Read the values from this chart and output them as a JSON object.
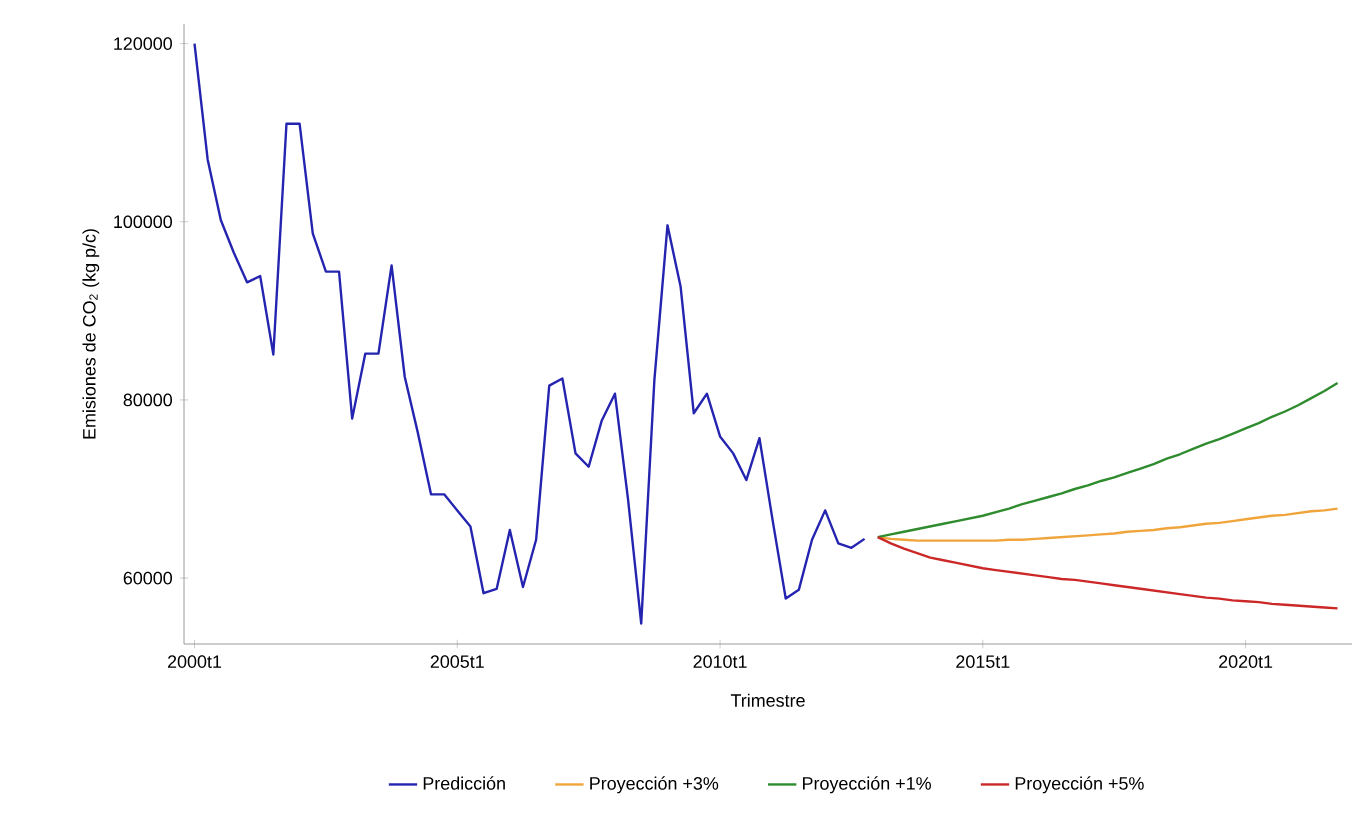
{
  "chart_data": {
    "type": "line",
    "xlabel": "Trimestre",
    "ylabel": "Emisiones de CO$_{2}$ (kg p/c)",
    "categories": [
      "2000t1",
      null,
      null,
      null,
      null,
      null,
      null,
      null,
      null,
      null,
      null,
      null,
      null,
      null,
      null,
      null,
      null,
      null,
      null,
      null,
      "2005t1",
      null,
      null,
      null,
      null,
      null,
      null,
      null,
      null,
      null,
      null,
      null,
      null,
      null,
      null,
      null,
      null,
      null,
      null,
      null,
      "2010t1",
      null,
      null,
      null,
      null,
      null,
      null,
      null,
      null,
      null,
      null,
      null,
      null,
      null,
      null,
      null,
      null,
      null,
      null,
      null,
      "2015t1",
      null,
      null,
      null,
      null,
      null,
      null,
      null,
      null,
      null,
      null,
      null,
      null,
      null,
      null,
      null,
      null,
      null,
      null,
      null,
      "2020t1",
      null,
      null,
      null,
      null,
      null,
      null,
      null
    ],
    "ylim": [
      52600,
      122200
    ],
    "yticks": [
      60000,
      80000,
      100000,
      120000
    ],
    "grid": false,
    "legend": "bottom",
    "marker": "none",
    "line_style": "solid",
    "series": [
      {
        "name": "Predicción",
        "color": "#2424b0",
        "values": [
          120000,
          107000,
          100200,
          96500,
          93200,
          93900,
          85100,
          111000,
          111000,
          98700,
          94400,
          94400,
          77900,
          85200,
          85200,
          95100,
          82600,
          76300,
          69400,
          69400,
          67600,
          65800,
          58300,
          58800,
          65400,
          59000,
          64300,
          81600,
          82400,
          74000,
          72500,
          77700,
          80700,
          68800,
          54900,
          82200,
          99600,
          92700,
          78500,
          80700,
          75900,
          74000,
          71000,
          75700,
          66500,
          57700,
          58700,
          64300,
          67600,
          63900,
          63400,
          64400,
          null,
          null,
          null,
          null,
          null,
          null,
          null,
          null,
          null,
          null,
          null,
          null,
          null,
          null,
          null,
          null,
          null,
          null,
          null,
          null,
          null,
          null,
          null,
          null,
          null,
          null,
          null,
          null,
          null,
          null,
          null,
          null,
          null,
          null,
          null,
          null
        ]
      },
      {
        "name": "Proyección +3%",
        "color": "#f0a53c",
        "values": [
          null,
          null,
          null,
          null,
          null,
          null,
          null,
          null,
          null,
          null,
          null,
          null,
          null,
          null,
          null,
          null,
          null,
          null,
          null,
          null,
          null,
          null,
          null,
          null,
          null,
          null,
          null,
          null,
          null,
          null,
          null,
          null,
          null,
          null,
          null,
          null,
          null,
          null,
          null,
          null,
          null,
          null,
          null,
          null,
          null,
          null,
          null,
          null,
          null,
          null,
          null,
          null,
          64600,
          64400,
          64300,
          64200,
          64200,
          64200,
          64200,
          64200,
          64200,
          64200,
          64300,
          64300,
          64400,
          64500,
          64600,
          64700,
          64800,
          64900,
          65000,
          65200,
          65300,
          65400,
          65600,
          65700,
          65900,
          66100,
          66200,
          66400,
          66600,
          66800,
          67000,
          67100,
          67300,
          67500,
          67600,
          67800
        ]
      },
      {
        "name": "Proyección +1%",
        "color": "#2e8b2e",
        "values": [
          null,
          null,
          null,
          null,
          null,
          null,
          null,
          null,
          null,
          null,
          null,
          null,
          null,
          null,
          null,
          null,
          null,
          null,
          null,
          null,
          null,
          null,
          null,
          null,
          null,
          null,
          null,
          null,
          null,
          null,
          null,
          null,
          null,
          null,
          null,
          null,
          null,
          null,
          null,
          null,
          null,
          null,
          null,
          null,
          null,
          null,
          null,
          null,
          null,
          null,
          null,
          null,
          64600,
          64900,
          65200,
          65500,
          65800,
          66100,
          66400,
          66700,
          67000,
          67400,
          67800,
          68300,
          68700,
          69100,
          69500,
          70000,
          70400,
          70900,
          71300,
          71800,
          72300,
          72800,
          73400,
          73900,
          74500,
          75100,
          75600,
          76200,
          76800,
          77400,
          78100,
          78700,
          79400,
          80200,
          81000,
          81900
        ]
      },
      {
        "name": "Proyección +5%",
        "color": "#cc2828",
        "values": [
          null,
          null,
          null,
          null,
          null,
          null,
          null,
          null,
          null,
          null,
          null,
          null,
          null,
          null,
          null,
          null,
          null,
          null,
          null,
          null,
          null,
          null,
          null,
          null,
          null,
          null,
          null,
          null,
          null,
          null,
          null,
          null,
          null,
          null,
          null,
          null,
          null,
          null,
          null,
          null,
          null,
          null,
          null,
          null,
          null,
          null,
          null,
          null,
          null,
          null,
          null,
          null,
          64600,
          63900,
          63300,
          62800,
          62300,
          62000,
          61700,
          61400,
          61100,
          60900,
          60700,
          60500,
          60300,
          60100,
          59900,
          59800,
          59600,
          59400,
          59200,
          59000,
          58800,
          58600,
          58400,
          58200,
          58000,
          57800,
          57700,
          57500,
          57400,
          57300,
          57100,
          57000,
          56900,
          56800,
          56700,
          56600
        ]
      }
    ]
  }
}
